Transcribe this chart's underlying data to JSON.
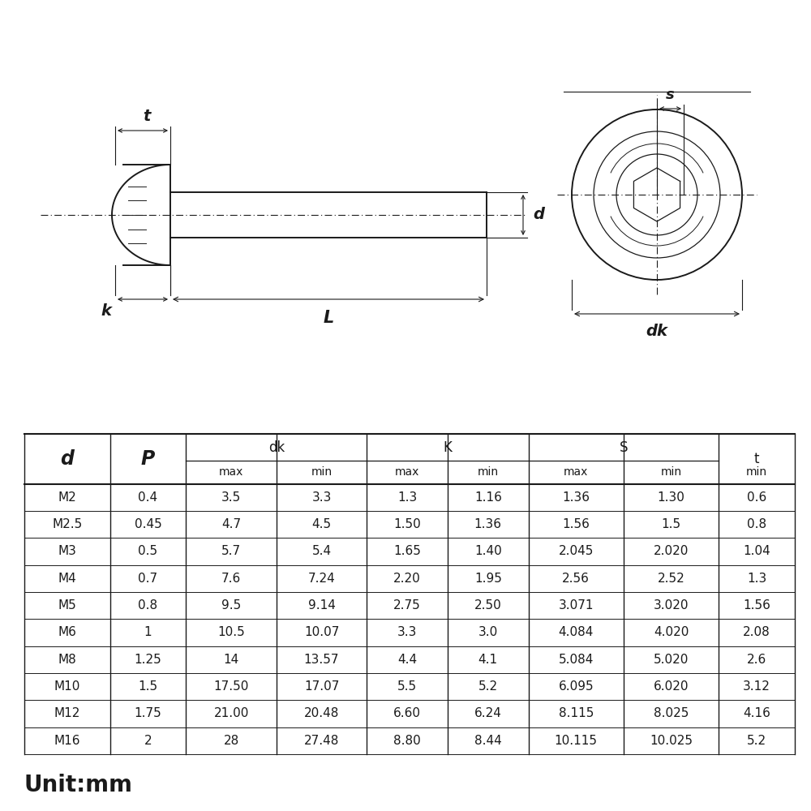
{
  "table_data": [
    [
      "M2",
      "0.4",
      "3.5",
      "3.3",
      "1.3",
      "1.16",
      "1.36",
      "1.30",
      "0.6"
    ],
    [
      "M2.5",
      "0.45",
      "4.7",
      "4.5",
      "1.50",
      "1.36",
      "1.56",
      "1.5",
      "0.8"
    ],
    [
      "M3",
      "0.5",
      "5.7",
      "5.4",
      "1.65",
      "1.40",
      "2.045",
      "2.020",
      "1.04"
    ],
    [
      "M4",
      "0.7",
      "7.6",
      "7.24",
      "2.20",
      "1.95",
      "2.56",
      "2.52",
      "1.3"
    ],
    [
      "M5",
      "0.8",
      "9.5",
      "9.14",
      "2.75",
      "2.50",
      "3.071",
      "3.020",
      "1.56"
    ],
    [
      "M6",
      "1",
      "10.5",
      "10.07",
      "3.3",
      "3.0",
      "4.084",
      "4.020",
      "2.08"
    ],
    [
      "M8",
      "1.25",
      "14",
      "13.57",
      "4.4",
      "4.1",
      "5.084",
      "5.020",
      "2.6"
    ],
    [
      "M10",
      "1.5",
      "17.50",
      "17.07",
      "5.5",
      "5.2",
      "6.095",
      "6.020",
      "3.12"
    ],
    [
      "M12",
      "1.75",
      "21.00",
      "20.48",
      "6.60",
      "6.24",
      "8.115",
      "8.025",
      "4.16"
    ],
    [
      "M16",
      "2",
      "28",
      "27.48",
      "8.80",
      "8.44",
      "10.115",
      "10.025",
      "5.2"
    ]
  ],
  "unit_text": "Unit:mm",
  "line_color": "#1a1a1a",
  "bg_color": "#ffffff"
}
